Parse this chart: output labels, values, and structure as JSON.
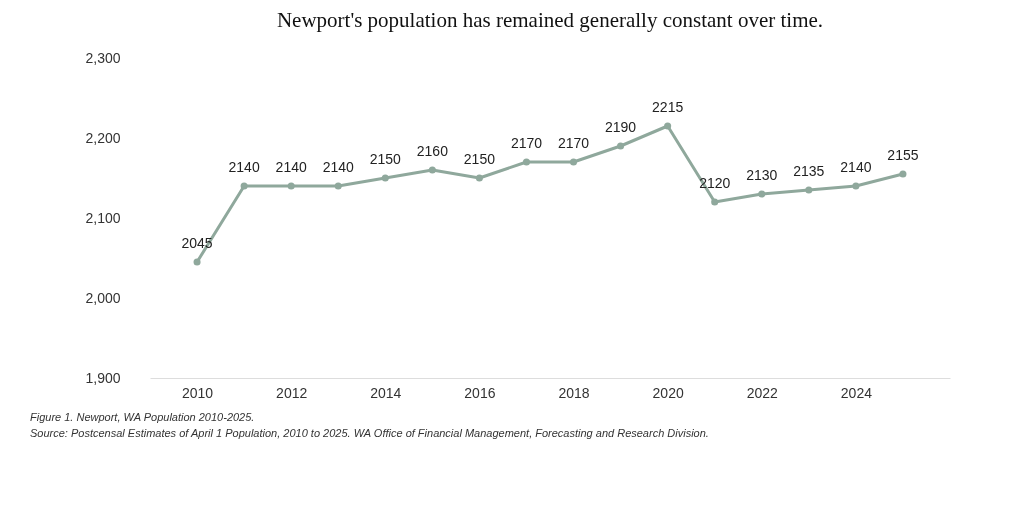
{
  "chart_data": {
    "type": "line",
    "title": "Newport's population has remained generally constant over time.",
    "x": [
      2010,
      2011,
      2012,
      2013,
      2014,
      2015,
      2016,
      2017,
      2018,
      2019,
      2020,
      2021,
      2022,
      2023,
      2024,
      2025
    ],
    "series": [
      {
        "color": "#8fa89c",
        "values": [
          2045,
          2140,
          2140,
          2140,
          2150,
          2160,
          2150,
          2170,
          2170,
          2190,
          2215,
          2120,
          2130,
          2135,
          2140,
          2155
        ]
      }
    ],
    "xlim": [
      2009,
      2026
    ],
    "xticks": [
      2010,
      2012,
      2014,
      2016,
      2018,
      2020,
      2022,
      2024
    ],
    "ylim": [
      1900,
      2300
    ],
    "yticks": [
      {
        "value": 1900,
        "label": "1,900"
      },
      {
        "value": 2000,
        "label": "2,000"
      },
      {
        "value": 2100,
        "label": "2,100"
      },
      {
        "value": 2200,
        "label": "2,200"
      },
      {
        "value": 2300,
        "label": "2,300"
      }
    ],
    "marker": "circle",
    "data_labels": true,
    "grid": false,
    "legend": false,
    "annotations": [
      "Figure 1. Newport, WA Population 2010-2025.",
      "Source: Postcensal Estimates of April 1 Population, 2010 to 2025. WA Office of Financial Management, Forecasting and Research Division."
    ]
  }
}
